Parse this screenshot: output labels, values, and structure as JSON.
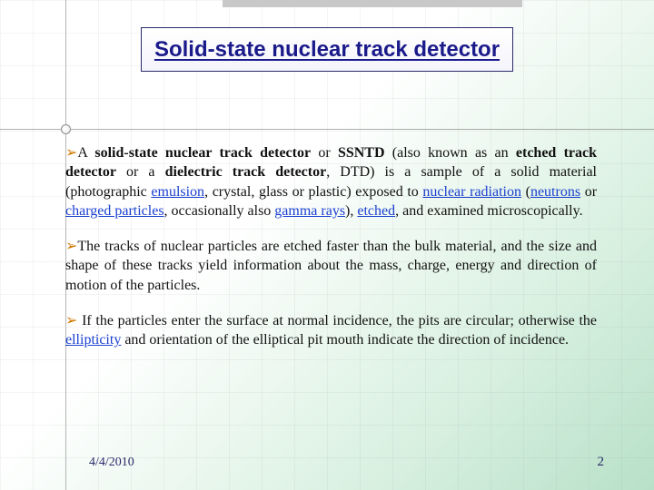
{
  "colors": {
    "title_text": "#1a1a8a",
    "title_border": "#2a2a6a",
    "bullet": "#d07800",
    "link": "#1a3fd0",
    "footer": "#2a2a6a",
    "bg_gradient_start": "#ffffff",
    "bg_gradient_end": "#b8e0c8"
  },
  "typography": {
    "title_fontsize": 24,
    "body_fontsize": 16,
    "footer_fontsize": 14
  },
  "title": "Solid-state nuclear track detector",
  "bullet_glyph": "➢",
  "paragraphs": {
    "p1": {
      "seg1": "A ",
      "bold1": "solid-state nuclear track detector",
      "seg2": " or ",
      "bold2": "SSNTD",
      "seg3": " (also known as an ",
      "bold3": "etched track detector",
      "seg4": " or a ",
      "bold4": "dielectric track detector",
      "seg5": ", DTD) is a sample of a solid material (photographic ",
      "link1": "emulsion",
      "seg6": ", crystal, glass or plastic) exposed to ",
      "link2": "nuclear radiation",
      "seg7": " (",
      "link3": "neutrons",
      "seg8": " or ",
      "link4": "charged particles",
      "seg9": ", occasionally also ",
      "link5": "gamma rays",
      "seg10": "), ",
      "link6": "etched",
      "seg11": ", and examined microscopically."
    },
    "p2": "The tracks of nuclear particles are etched faster than the bulk material, and the size and shape of these tracks yield information about the mass, charge, energy and direction of motion of the particles.",
    "p3": {
      "seg1": " If the particles enter the surface at normal incidence, the pits are circular; otherwise the ",
      "link1": "ellipticity",
      "seg2": " and orientation of the elliptical pit mouth indicate the direction of incidence."
    }
  },
  "footer": {
    "date": "4/4/2010",
    "page_number": "2"
  }
}
